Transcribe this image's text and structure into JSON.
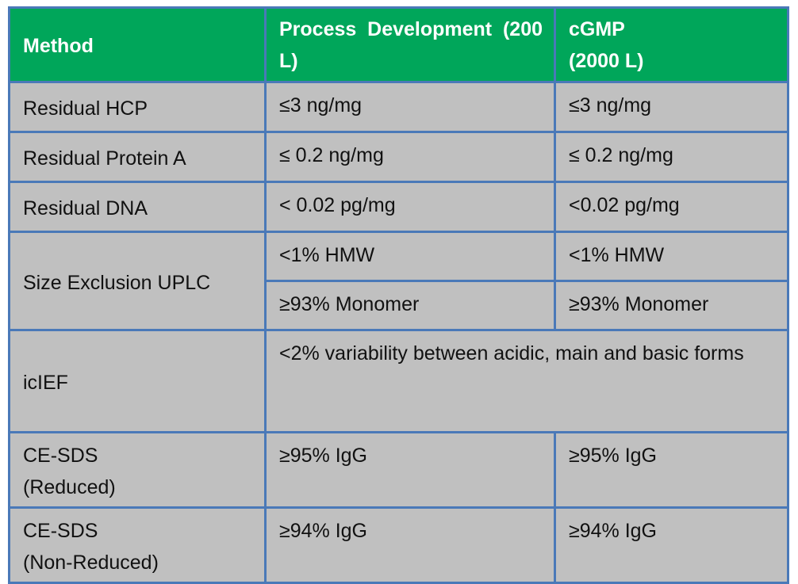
{
  "table": {
    "header": [
      "Method",
      "Process Development (200 L)",
      "cGMP\n(2000 L)"
    ],
    "rows": [
      [
        "Residual HCP",
        "≤3 ng/mg",
        "≤3 ng/mg"
      ],
      [
        "Residual Protein A",
        "≤ 0.2 ng/mg",
        "≤ 0.2 ng/mg"
      ],
      [
        "Residual DNA",
        "< 0.02  pg/mg",
        "<0.02 pg/mg"
      ],
      [
        "Size Exclusion UPLC",
        "<1% HMW",
        "<1% HMW"
      ],
      [
        "≥93% Monomer",
        "≥93% Monomer"
      ],
      [
        "icIEF",
        "<2% variability between acidic, main and basic forms"
      ],
      [
        "CE-SDS\n(Reduced)",
        "≥95% IgG",
        "≥95% IgG"
      ],
      [
        "CE-SDS\n(Non-Reduced)",
        "≥94% IgG",
        "≥94% IgG"
      ]
    ]
  }
}
